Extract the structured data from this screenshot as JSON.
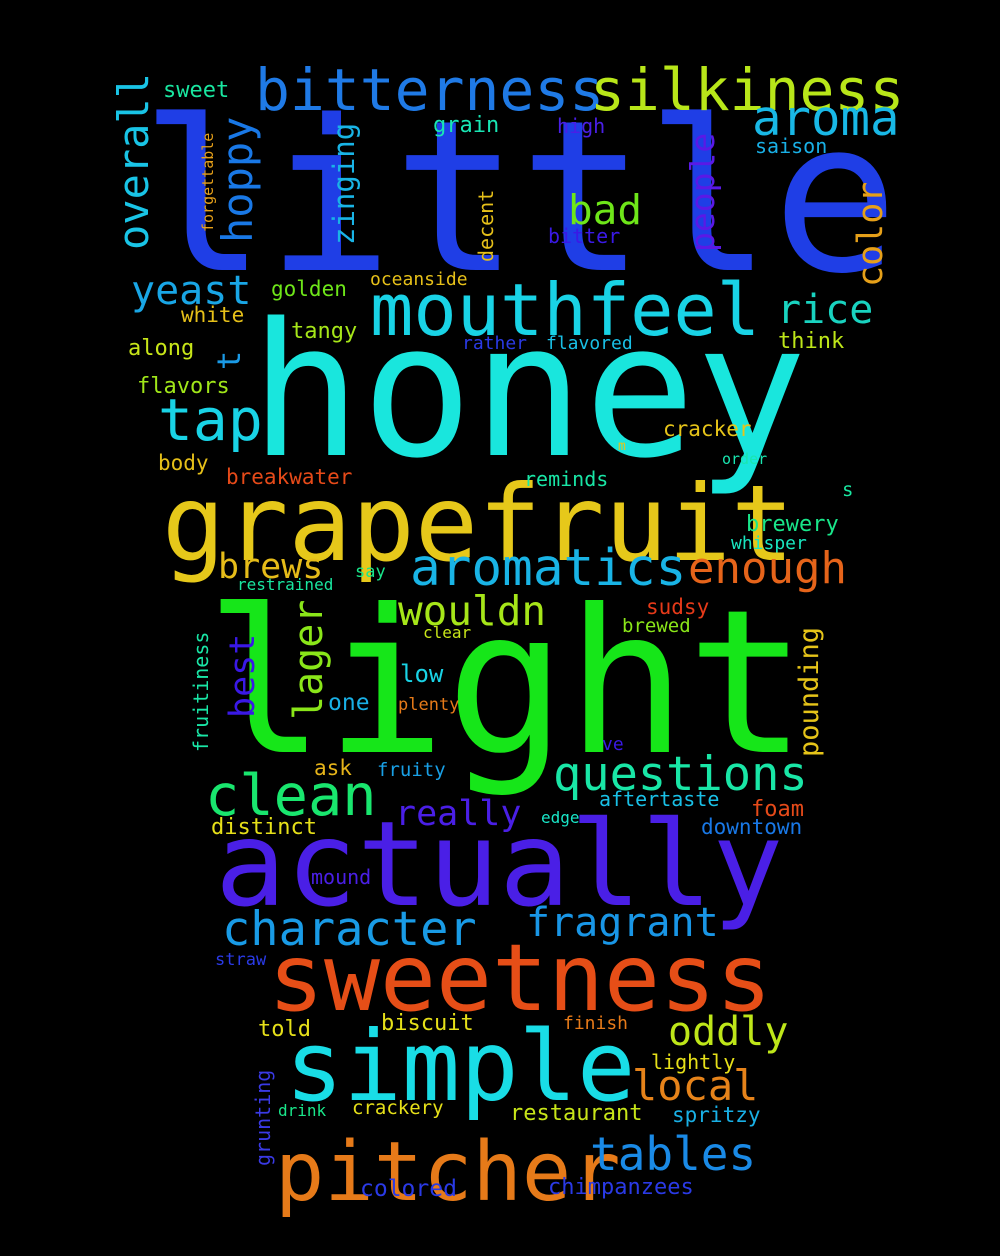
{
  "background": "#000000",
  "words": [
    {
      "text": "little",
      "color": "#1f3ee6"
    },
    {
      "text": "honey",
      "color": "#19e6dd"
    },
    {
      "text": "light",
      "color": "#16e619"
    },
    {
      "text": "actually",
      "color": "#4a1fe6"
    },
    {
      "text": "grapefruit",
      "color": "#e6c81a"
    },
    {
      "text": "sweetness",
      "color": "#e64e17"
    },
    {
      "text": "simple",
      "color": "#19dde6"
    },
    {
      "text": "pitcher",
      "color": "#e67a19"
    },
    {
      "text": "mouthfeel",
      "color": "#19d3e6"
    },
    {
      "text": "bitterness",
      "color": "#1f7ae6"
    },
    {
      "text": "silkiness",
      "color": "#b8e619"
    },
    {
      "text": "aromatics",
      "color": "#19b4e6"
    },
    {
      "text": "clean",
      "color": "#19e66e"
    },
    {
      "text": "questions",
      "color": "#19e6a6"
    },
    {
      "text": "character",
      "color": "#199be6"
    },
    {
      "text": "fragrant",
      "color": "#1996e6"
    },
    {
      "text": "aroma",
      "color": "#19b8e6"
    },
    {
      "text": "tap",
      "color": "#19d3e6"
    },
    {
      "text": "enough",
      "color": "#e6641a"
    },
    {
      "text": "wouldn",
      "color": "#a6e619"
    },
    {
      "text": "oddly",
      "color": "#bee619"
    },
    {
      "text": "local",
      "color": "#e6831a"
    },
    {
      "text": "tables",
      "color": "#1a8ae6"
    },
    {
      "text": "overall",
      "color": "#19c4e6"
    },
    {
      "text": "hoppy",
      "color": "#1978e6"
    },
    {
      "text": "bad",
      "color": "#6ee619"
    },
    {
      "text": "yeast",
      "color": "#19a6e6"
    },
    {
      "text": "rice",
      "color": "#19d3c0"
    },
    {
      "text": "brews",
      "color": "#e6bc19"
    },
    {
      "text": "color",
      "color": "#e6a019"
    },
    {
      "text": "people",
      "color": "#5a19e6"
    },
    {
      "text": "zinging",
      "color": "#19b4e6"
    },
    {
      "text": "lager",
      "color": "#8ae619"
    },
    {
      "text": "best",
      "color": "#3a19e6"
    },
    {
      "text": "pounding",
      "color": "#e6c419"
    },
    {
      "text": "really",
      "color": "#4a1fe6"
    },
    {
      "text": "t",
      "color": "#1a9ae6"
    },
    {
      "text": "sweet",
      "color": "#19e6a0"
    },
    {
      "text": "grain",
      "color": "#19e6b4"
    },
    {
      "text": "high",
      "color": "#4a1fe6"
    },
    {
      "text": "saison",
      "color": "#19b0e6"
    },
    {
      "text": "forgettable",
      "color": "#e6a019"
    },
    {
      "text": "decent",
      "color": "#e6c019"
    },
    {
      "text": "bitter",
      "color": "#3a19e6"
    },
    {
      "text": "golden",
      "color": "#6ee619"
    },
    {
      "text": "oceanside",
      "color": "#e6c019"
    },
    {
      "text": "white",
      "color": "#e6c019"
    },
    {
      "text": "tangy",
      "color": "#a6e619"
    },
    {
      "text": "think",
      "color": "#bee619"
    },
    {
      "text": "along",
      "color": "#c8e619"
    },
    {
      "text": "rather",
      "color": "#2a3ae6"
    },
    {
      "text": "flavored",
      "color": "#19c0e6"
    },
    {
      "text": "flavors",
      "color": "#a0e619"
    },
    {
      "text": "cracker",
      "color": "#e6c419"
    },
    {
      "text": "m",
      "color": "#e6c419"
    },
    {
      "text": "order",
      "color": "#19e6b0"
    },
    {
      "text": "body",
      "color": "#e6c019"
    },
    {
      "text": "breakwater",
      "color": "#e64a19"
    },
    {
      "text": "reminds",
      "color": "#19e6a6"
    },
    {
      "text": "s",
      "color": "#19e6a0"
    },
    {
      "text": "brewery",
      "color": "#19e68a"
    },
    {
      "text": "whisper",
      "color": "#19e6c0"
    },
    {
      "text": "restrained",
      "color": "#19e6a0"
    },
    {
      "text": "say",
      "color": "#19e68a"
    },
    {
      "text": "fruitiness",
      "color": "#19e6a6"
    },
    {
      "text": "sudsy",
      "color": "#e63a19"
    },
    {
      "text": "clear",
      "color": "#c8e619"
    },
    {
      "text": "brewed",
      "color": "#8ae619"
    },
    {
      "text": "low",
      "color": "#19d3e6"
    },
    {
      "text": "one",
      "color": "#19b0e6"
    },
    {
      "text": "plenty",
      "color": "#e67a19"
    },
    {
      "text": "ve",
      "color": "#3a19e6"
    },
    {
      "text": "ask",
      "color": "#e6b419"
    },
    {
      "text": "fruity",
      "color": "#19a0e6"
    },
    {
      "text": "aftertaste",
      "color": "#19c0e6"
    },
    {
      "text": "foam",
      "color": "#e64a19"
    },
    {
      "text": "distinct",
      "color": "#e6e019"
    },
    {
      "text": "edge",
      "color": "#19e6c8"
    },
    {
      "text": "downtown",
      "color": "#1978e6"
    },
    {
      "text": "mound",
      "color": "#4a1fe6"
    },
    {
      "text": "straw",
      "color": "#2a3ae6"
    },
    {
      "text": "told",
      "color": "#e6e019"
    },
    {
      "text": "biscuit",
      "color": "#e6e019"
    },
    {
      "text": "finish",
      "color": "#e67a19"
    },
    {
      "text": "grunting",
      "color": "#3a3ae6"
    },
    {
      "text": "lightly",
      "color": "#e6e019"
    },
    {
      "text": "drink",
      "color": "#19e68a"
    },
    {
      "text": "crackery",
      "color": "#e6e019"
    },
    {
      "text": "restaurant",
      "color": "#c8e619"
    },
    {
      "text": "spritzy",
      "color": "#19b0e6"
    },
    {
      "text": "colored",
      "color": "#2a3ae6"
    },
    {
      "text": "chimpanzees",
      "color": "#2a3ae6"
    }
  ]
}
